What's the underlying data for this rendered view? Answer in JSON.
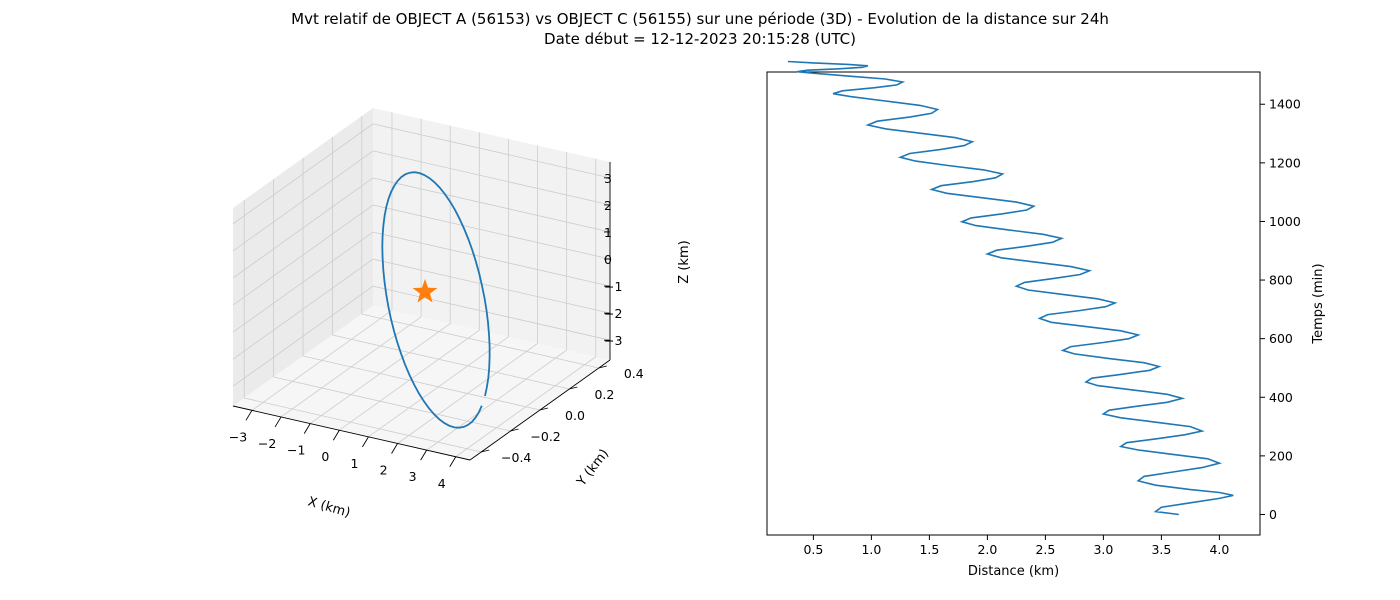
{
  "title": "Mvt relatif de OBJECT A (56153) vs OBJECT C (56155) sur une période (3D) - Evolution de la distance sur 24h",
  "subtitle": "Date début = 12-12-2023 20:15:28 (UTC)",
  "colors": {
    "line": "#1f77b4",
    "marker": "#ff7f0e",
    "pane": "#f2f2f2",
    "grid": "#cccccc"
  },
  "chart_data": [
    {
      "type": "line3d",
      "xlabel": "X (km)",
      "ylabel": "Y (km)",
      "zlabel": "Z (km)",
      "xticks": [
        "−3",
        "−2",
        "−1",
        "0",
        "1",
        "2",
        "3",
        "4"
      ],
      "yticks": [
        "−0.4",
        "−0.2",
        "0.0",
        "0.2",
        "0.4"
      ],
      "zticks": [
        "−3",
        "−2",
        "−1",
        "0",
        "1",
        "2",
        "3"
      ],
      "marker": {
        "shape": "star",
        "x": 0,
        "y": 0,
        "z": 0
      },
      "trajectory_shape": "closed relative orbit loop (ellipse)",
      "grid": true
    },
    {
      "type": "line",
      "xlabel": "Distance (km)",
      "ylabel": "Temps (min)",
      "xticks": [
        0.5,
        1.0,
        1.5,
        2.0,
        2.5,
        3.0,
        3.5,
        4.0
      ],
      "yticks": [
        0,
        200,
        400,
        600,
        800,
        1000,
        1200,
        1400
      ],
      "xlim": [
        0.1,
        4.35
      ],
      "ylim": [
        -70,
        1510
      ],
      "yaxis_side": "right",
      "series": [
        {
          "distance": [
            3.65,
            3.45,
            3.5,
            3.75,
            4.0,
            4.12,
            4.0,
            3.75,
            3.45,
            3.3,
            3.35,
            3.6,
            3.85,
            4.0,
            3.9,
            3.6,
            3.3,
            3.15,
            3.2,
            3.45,
            3.7,
            3.85,
            3.75,
            3.45,
            3.15,
            3.0,
            3.05,
            3.3,
            3.55,
            3.68,
            3.55,
            3.25,
            2.95,
            2.85,
            2.9,
            3.15,
            3.4,
            3.48,
            3.35,
            3.05,
            2.75,
            2.65,
            2.72,
            3.0,
            3.22,
            3.3,
            3.15,
            2.85,
            2.55,
            2.45,
            2.52,
            2.8,
            3.02,
            3.1,
            2.95,
            2.65,
            2.35,
            2.25,
            2.32,
            2.58,
            2.8,
            2.88,
            2.72,
            2.42,
            2.12,
            2.0,
            2.08,
            2.35,
            2.56,
            2.64,
            2.48,
            2.18,
            1.9,
            1.78,
            1.86,
            2.13,
            2.34,
            2.4,
            2.25,
            1.95,
            1.65,
            1.52,
            1.6,
            1.88,
            2.07,
            2.13,
            1.97,
            1.66,
            1.38,
            1.25,
            1.33,
            1.6,
            1.8,
            1.87,
            1.72,
            1.42,
            1.12,
            0.97,
            1.05,
            1.33,
            1.52,
            1.57,
            1.42,
            1.12,
            0.82,
            0.67,
            0.75,
            1.02,
            1.22,
            1.27,
            1.12,
            0.8,
            0.5,
            0.36,
            0.45,
            0.72,
            0.92,
            0.97,
            0.8,
            0.5,
            0.28
          ],
          "time": [
            0,
            10,
            25,
            40,
            55,
            65,
            75,
            85,
            100,
            115,
            130,
            145,
            160,
            175,
            190,
            205,
            220,
            232,
            245,
            258,
            272,
            285,
            300,
            315,
            330,
            343,
            356,
            370,
            383,
            396,
            410,
            425,
            440,
            452,
            465,
            478,
            492,
            505,
            518,
            532,
            548,
            560,
            573,
            587,
            600,
            613,
            627,
            641,
            656,
            669,
            682,
            696,
            709,
            722,
            736,
            751,
            766,
            779,
            792,
            806,
            819,
            832,
            846,
            861,
            876,
            889,
            902,
            916,
            929,
            942,
            956,
            971,
            986,
            999,
            1012,
            1026,
            1039,
            1052,
            1066,
            1081,
            1096,
            1109,
            1122,
            1136,
            1149,
            1162,
            1176,
            1191,
            1206,
            1219,
            1232,
            1246,
            1259,
            1272,
            1286,
            1301,
            1316,
            1329,
            1342,
            1356,
            1369,
            1382,
            1396,
            1411,
            1426,
            1436,
            1446,
            1456,
            1466,
            1476,
            1486,
            1496,
            1506,
            1511,
            1516,
            1521,
            1526,
            1531,
            1536,
            1541,
            1546
          ]
        }
      ]
    }
  ]
}
